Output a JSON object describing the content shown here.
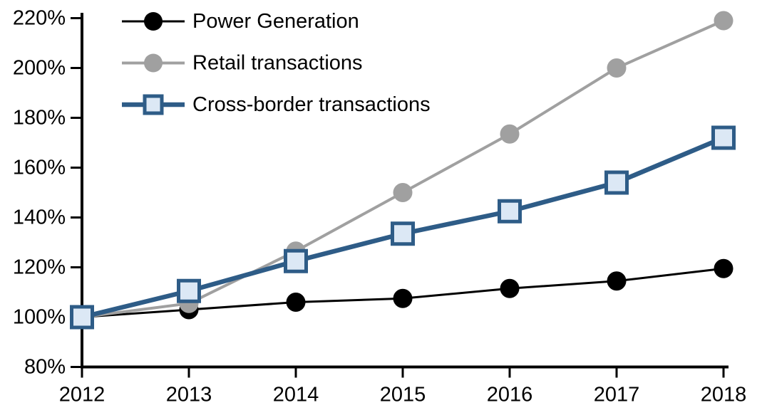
{
  "chart_data": {
    "type": "line",
    "title": "",
    "x_tick_labels": [
      "2012",
      "2013",
      "2014",
      "2015",
      "2016",
      "2017",
      "2018"
    ],
    "y_axis": {
      "min": 80,
      "max": 220,
      "step": 20,
      "unit": "%",
      "tick_values": [
        220,
        200,
        180,
        160,
        140,
        120,
        100,
        80
      ],
      "tick_labels": [
        "220%",
        "200%",
        "180%",
        "160%",
        "140%",
        "120%",
        "100%",
        "80%"
      ]
    },
    "grid": false,
    "legend_position": "top-left",
    "series": [
      {
        "name": "Power Generation",
        "color": "#000000",
        "marker": "circle",
        "marker_fill": "#000000",
        "line_width": 3,
        "values": [
          100,
          103,
          106,
          107.5,
          111.5,
          114.5,
          119.5
        ]
      },
      {
        "name": "Retail transactions",
        "color": "#a0a0a0",
        "marker": "circle",
        "marker_fill": "#a0a0a0",
        "line_width": 4,
        "values": [
          100,
          105.5,
          126.5,
          150,
          173.5,
          200,
          219
        ]
      },
      {
        "name": "Cross-border transactions",
        "color": "#2e5c87",
        "marker": "square",
        "marker_fill": "#dce8f5",
        "line_width": 6.5,
        "values": [
          100,
          110.5,
          122.5,
          133.5,
          142.5,
          154,
          172
        ]
      }
    ]
  }
}
